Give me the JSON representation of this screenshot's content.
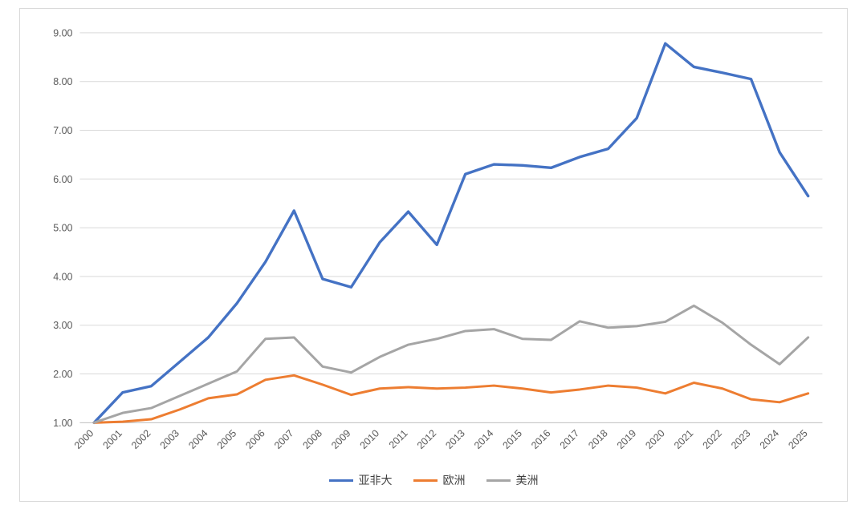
{
  "chart_data": {
    "type": "line",
    "title": "",
    "xlabel": "",
    "ylabel": "",
    "x": [
      "2000",
      "2001",
      "2002",
      "2003",
      "2004",
      "2005",
      "2006",
      "2007",
      "2008",
      "2009",
      "2010",
      "2011",
      "2012",
      "2013",
      "2014",
      "2015",
      "2016",
      "2017",
      "2018",
      "2019",
      "2020",
      "2021",
      "2022",
      "2023",
      "2024",
      "2025"
    ],
    "series": [
      {
        "name": "亚非大",
        "color": "#4472C4",
        "stroke_width": 3.4,
        "values": [
          1.0,
          1.62,
          1.75,
          2.25,
          2.75,
          3.45,
          4.3,
          5.35,
          3.95,
          3.78,
          4.7,
          5.33,
          4.65,
          6.1,
          6.3,
          6.28,
          6.23,
          6.45,
          6.62,
          7.25,
          8.78,
          8.3,
          8.18,
          8.05,
          6.55,
          5.65
        ]
      },
      {
        "name": "欧洲",
        "color": "#ED7D31",
        "stroke_width": 3.0,
        "values": [
          1.0,
          1.02,
          1.07,
          1.27,
          1.5,
          1.58,
          1.88,
          1.97,
          1.78,
          1.57,
          1.7,
          1.73,
          1.7,
          1.72,
          1.76,
          1.7,
          1.62,
          1.68,
          1.76,
          1.72,
          1.6,
          1.82,
          1.7,
          1.48,
          1.42,
          1.6
        ]
      },
      {
        "name": "美洲",
        "color": "#A5A5A5",
        "stroke_width": 3.0,
        "values": [
          1.0,
          1.2,
          1.3,
          1.55,
          1.8,
          2.05,
          2.72,
          2.75,
          2.15,
          2.03,
          2.35,
          2.6,
          2.72,
          2.88,
          2.92,
          2.72,
          2.7,
          3.08,
          2.95,
          2.98,
          3.07,
          3.4,
          3.05,
          2.6,
          2.2,
          2.75
        ]
      }
    ],
    "ylim": [
      1.0,
      9.0
    ],
    "ytick_step": 1.0,
    "yticks": [
      "1.00",
      "2.00",
      "3.00",
      "4.00",
      "5.00",
      "6.00",
      "7.00",
      "8.00",
      "9.00"
    ],
    "grid": true,
    "legend_position": "bottom",
    "x_label_rotation_deg": -45
  },
  "style": {
    "gridline_color": "#d9d9d9",
    "axis_line_color": "#bfbfbf",
    "tick_label_color": "#595959",
    "tick_label_size": 12.5
  }
}
